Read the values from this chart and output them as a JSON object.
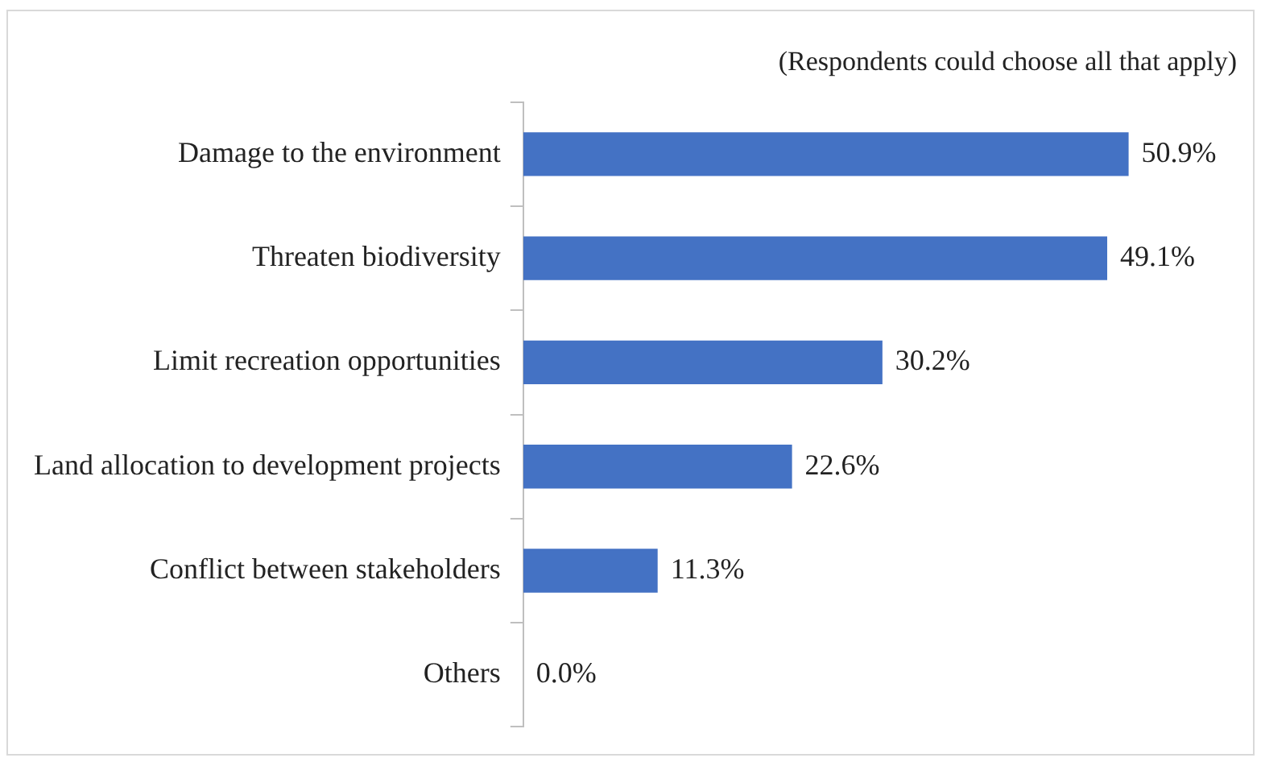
{
  "chart_data": {
    "type": "bar",
    "orientation": "horizontal",
    "subtitle": "(Respondents could choose all that apply)",
    "categories": [
      "Damage to the environment",
      "Threaten biodiversity",
      "Limit recreation opportunities",
      "Land allocation to development projects",
      "Conflict between stakeholders",
      "Others"
    ],
    "values": [
      50.9,
      49.1,
      30.2,
      22.6,
      11.3,
      0.0
    ],
    "value_labels": [
      "50.9%",
      "49.1%",
      "30.2%",
      "22.6%",
      "11.3%",
      "0.0%"
    ],
    "color": "#4472c4",
    "grid": false,
    "legend": false,
    "tick_labels": "y"
  }
}
